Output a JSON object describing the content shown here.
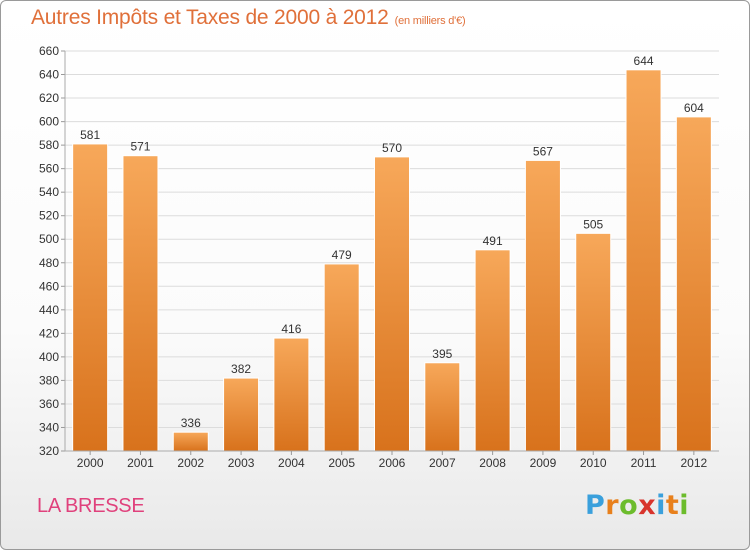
{
  "chart_data": {
    "type": "bar",
    "title": "Autres Impôts et Taxes de 2000 à 2012",
    "subtitle": "(en milliers d'€)",
    "categories": [
      "2000",
      "2001",
      "2002",
      "2003",
      "2004",
      "2005",
      "2006",
      "2007",
      "2008",
      "2009",
      "2010",
      "2011",
      "2012"
    ],
    "values": [
      581,
      571,
      336,
      382,
      416,
      479,
      570,
      395,
      491,
      567,
      505,
      644,
      604
    ],
    "ylim": [
      320,
      660
    ],
    "yticks": [
      320,
      340,
      360,
      380,
      400,
      420,
      440,
      460,
      480,
      500,
      520,
      540,
      560,
      580,
      600,
      620,
      640,
      660
    ],
    "xlabel": "",
    "ylabel": "",
    "grid": true,
    "data_labels": true
  },
  "footer": {
    "city": "LA BRESSE"
  },
  "logo": {
    "text": "Proxiti",
    "letters": [
      "P",
      "r",
      "o",
      "x",
      "i",
      "t",
      "i"
    ],
    "colors": [
      "#3aa0dc",
      "#e8801c",
      "#6cbc2c",
      "#d8342c",
      "#3aa0dc",
      "#e8801c",
      "#6cbc2c"
    ]
  },
  "colors": {
    "title": "#e0703a",
    "city": "#e0417c",
    "bar_light": "#f7a85a",
    "bar_dark": "#d8721c",
    "grid": "#dcdcdc"
  }
}
